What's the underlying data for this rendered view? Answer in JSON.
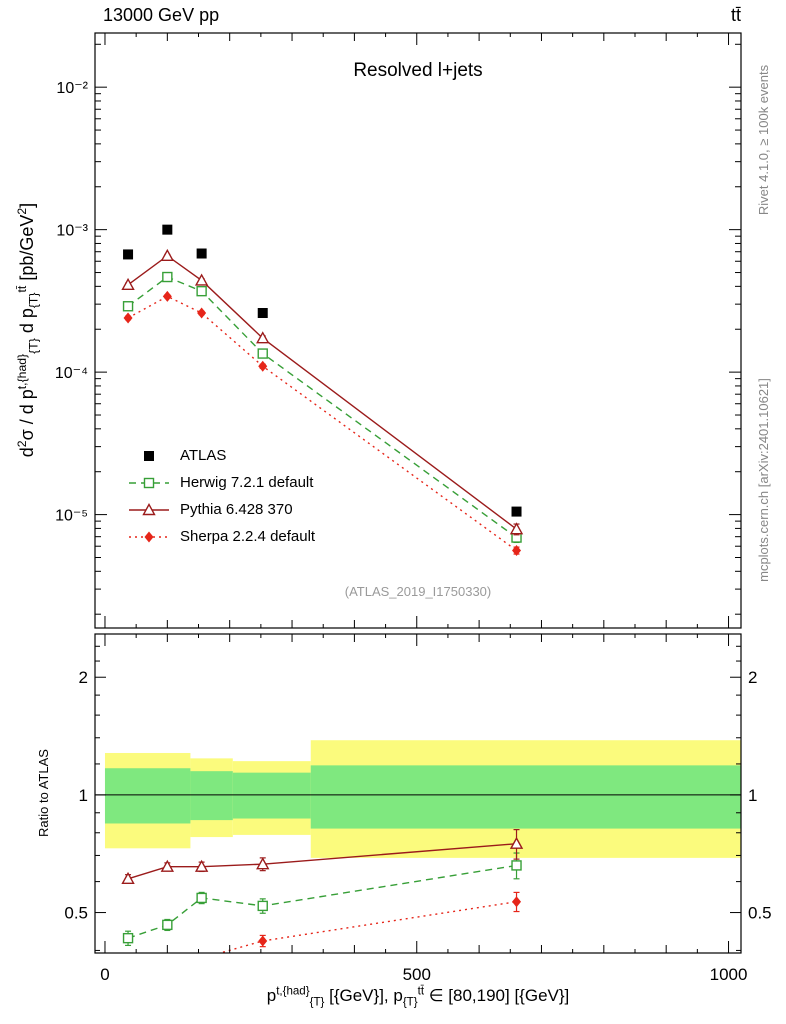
{
  "header": {
    "left": "13000 GeV pp",
    "right": "tt̄"
  },
  "panel_title": "Resolved l+jets",
  "watermark": "(ATLAS_2019_I1750330)",
  "side_notes": {
    "right_top": "Rivet 4.1.0, ≥ 100k events",
    "right_bottom": "mcplots.cern.ch [arXiv:2401.10621]"
  },
  "axes": {
    "y_main_label_html": "d<sup>2</sup>σ / d p<sup>t,{had}</sup><sub>{T}</sub> d p<sub>{T}</sub><sup>tt̄</sup> [pb/GeV<sup>2</sup>]",
    "y_ratio_label": "Ratio to ATLAS",
    "x_label_html": "p<sup>t,{had}</sup><sub>{T}</sub> [{GeV}], p<sub>{T}</sub><sup>tt̄</sup> ∈ [80,190] [{GeV}]"
  },
  "chart_data": {
    "type": "line",
    "title": "Resolved l+jets",
    "xlabel": "p^{t,{had}}_{T} [{GeV}], p_{T}^{tt̄} ∈ [80,190] [{GeV}]",
    "ylabel": "d^2σ / d p^{t,{had}}_{T} d p^{tt̄}_{T} [pb/GeV^2]",
    "ylabel_ratio": "Ratio to ATLAS",
    "legend_position": "left-middle",
    "xlim": [
      -16,
      1020
    ],
    "ylog_main": true,
    "ylim_main": [
      1.6e-06,
      0.024
    ],
    "ylog_ratio": true,
    "ylim_ratio": [
      0.394,
      2.58
    ],
    "x_points": [
      37,
      100,
      155,
      253,
      660
    ],
    "series": [
      {
        "name": "ATLAS",
        "marker": "filled-square",
        "color": "#000000",
        "line": "none",
        "values": [
          0.00067,
          0.001,
          0.00068,
          0.00026,
          1.05e-05
        ]
      },
      {
        "name": "Herwig 7.2.1 default",
        "marker": "open-square",
        "color": "#379f37",
        "line": "dashed",
        "values": [
          0.00029,
          0.000465,
          0.00037,
          0.000135,
          6.9e-06
        ],
        "ratio": [
          0.43,
          0.465,
          0.545,
          0.52,
          0.66
        ],
        "ratio_err": [
          0.018,
          0.015,
          0.018,
          0.022,
          0.05
        ]
      },
      {
        "name": "Pythia 6.428 370",
        "marker": "open-triangle",
        "color": "#9b1b1b",
        "line": "solid",
        "values": [
          0.00041,
          0.000655,
          0.00044,
          0.000173,
          7.9e-06
        ],
        "ratio": [
          0.61,
          0.655,
          0.655,
          0.665,
          0.75
        ],
        "ratio_err": [
          0.015,
          0.015,
          0.018,
          0.025,
          0.065
        ]
      },
      {
        "name": "Sherpa 2.2.4 default",
        "marker": "filled-diamond",
        "color": "#e62519",
        "line": "dotted",
        "values": [
          0.00024,
          0.00034,
          0.00026,
          0.00011,
          5.6e-06
        ],
        "ratio": [
          0.358,
          0.34,
          0.382,
          0.423,
          0.533
        ],
        "ratio_err": [
          0.01,
          0.008,
          0.01,
          0.014,
          0.03
        ]
      }
    ],
    "bands": [
      {
        "x0": 0,
        "x1": 137,
        "yellow": [
          0.73,
          1.28
        ],
        "green": [
          0.845,
          1.17
        ]
      },
      {
        "x0": 137,
        "x1": 205,
        "yellow": [
          0.78,
          1.24
        ],
        "green": [
          0.862,
          1.15
        ]
      },
      {
        "x0": 205,
        "x1": 330,
        "yellow": [
          0.79,
          1.22
        ],
        "green": [
          0.87,
          1.14
        ]
      },
      {
        "x0": 330,
        "x1": 1020,
        "yellow": [
          0.69,
          1.38
        ],
        "green": [
          0.82,
          1.19
        ]
      }
    ],
    "band_colors": {
      "yellow": "#fbfb7d",
      "green": "#7fe87f"
    },
    "xticks": [
      {
        "v": 0,
        "label": "0"
      },
      {
        "v": 500,
        "label": "500"
      },
      {
        "v": 1000,
        "label": "1000"
      }
    ],
    "yticks_main": [
      {
        "v": 0.01,
        "label": "10⁻²"
      },
      {
        "v": 0.001,
        "label": "10⁻³"
      },
      {
        "v": 0.0001,
        "label": "10⁻⁴"
      },
      {
        "v": 1e-05,
        "label": "10⁻⁵"
      }
    ],
    "yticks_ratio": [
      {
        "v": 2,
        "label": "2"
      },
      {
        "v": 1,
        "label": "1"
      },
      {
        "v": 0.5,
        "label": "0.5"
      }
    ]
  }
}
